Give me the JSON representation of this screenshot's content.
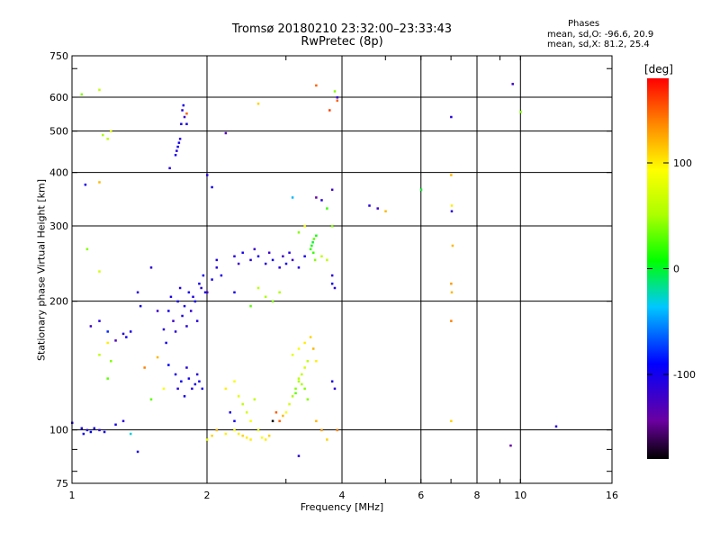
{
  "chart_data": {
    "type": "scatter",
    "title": "Tromsø 20180210 23:32:00–23:33:43",
    "subtitle": "RwPretec (8p)",
    "xlabel": "Frequency [MHz]",
    "ylabel": "Stationary phase Virtual Height [km]",
    "x_scale": "log",
    "y_scale": "log",
    "xlim": [
      1,
      16
    ],
    "ylim": [
      75,
      750
    ],
    "x_ticks": [
      1,
      2,
      4,
      6,
      8,
      10,
      16
    ],
    "y_ticks": [
      75,
      100,
      200,
      300,
      400,
      500,
      600,
      750
    ],
    "grid": true,
    "stats": {
      "title": "Phases",
      "o_line": "mean, sd,O: -96.6, 20.9",
      "x_line": "mean, sd,X: 81.2, 25.4"
    },
    "colorbar": {
      "title": "[deg]",
      "range": [
        -180,
        180
      ],
      "ticks": [
        100,
        0,
        -100
      ]
    },
    "points": [
      [
        1.0,
        104,
        -110
      ],
      [
        1.05,
        101,
        -100
      ],
      [
        1.06,
        98,
        -95
      ],
      [
        1.08,
        100,
        -105
      ],
      [
        1.1,
        99,
        -90
      ],
      [
        1.12,
        101,
        -100
      ],
      [
        1.15,
        100,
        -110
      ],
      [
        1.18,
        99,
        -100
      ],
      [
        1.25,
        103,
        -100
      ],
      [
        1.3,
        105,
        -110
      ],
      [
        1.35,
        98,
        -30
      ],
      [
        1.4,
        89,
        -105
      ],
      [
        1.1,
        175,
        -120
      ],
      [
        1.15,
        180,
        -110
      ],
      [
        1.2,
        170,
        -80
      ],
      [
        1.25,
        162,
        -130
      ],
      [
        1.3,
        168,
        -110
      ],
      [
        1.32,
        165,
        -100
      ],
      [
        1.35,
        170,
        -100
      ],
      [
        1.4,
        210,
        -110
      ],
      [
        1.42,
        195,
        -100
      ],
      [
        1.5,
        240,
        -110
      ],
      [
        1.55,
        190,
        -120
      ],
      [
        1.6,
        172,
        -110
      ],
      [
        1.62,
        160,
        -100
      ],
      [
        1.64,
        190,
        -100
      ],
      [
        1.66,
        205,
        -105
      ],
      [
        1.68,
        180,
        -120
      ],
      [
        1.7,
        170,
        -110
      ],
      [
        1.72,
        200,
        -100
      ],
      [
        1.74,
        215,
        -110
      ],
      [
        1.76,
        185,
        -105
      ],
      [
        1.78,
        195,
        -100
      ],
      [
        1.8,
        175,
        -110
      ],
      [
        1.82,
        210,
        -100
      ],
      [
        1.84,
        190,
        -115
      ],
      [
        1.86,
        205,
        -105
      ],
      [
        1.88,
        200,
        -100
      ],
      [
        1.9,
        180,
        -110
      ],
      [
        1.92,
        220,
        -100
      ],
      [
        1.94,
        215,
        -110
      ],
      [
        1.96,
        230,
        -100
      ],
      [
        1.98,
        210,
        -105
      ],
      [
        1.7,
        135,
        -100
      ],
      [
        1.72,
        125,
        -110
      ],
      [
        1.75,
        130,
        -95
      ],
      [
        1.78,
        120,
        -100
      ],
      [
        1.8,
        140,
        -110
      ],
      [
        1.82,
        132,
        -100
      ],
      [
        1.85,
        125,
        -105
      ],
      [
        1.88,
        128,
        -100
      ],
      [
        1.9,
        135,
        -110
      ],
      [
        1.92,
        130,
        -100
      ],
      [
        1.95,
        125,
        -100
      ],
      [
        1.6,
        125,
        90
      ],
      [
        1.5,
        118,
        30
      ],
      [
        1.45,
        140,
        140
      ],
      [
        1.55,
        148,
        120
      ],
      [
        1.64,
        142,
        -90
      ],
      [
        1.2,
        132,
        30
      ],
      [
        1.22,
        145,
        40
      ],
      [
        1.15,
        150,
        60
      ],
      [
        1.2,
        160,
        100
      ],
      [
        1.7,
        440,
        -100
      ],
      [
        1.71,
        450,
        -110
      ],
      [
        1.72,
        460,
        -95
      ],
      [
        1.73,
        470,
        -100
      ],
      [
        1.74,
        480,
        -110
      ],
      [
        1.75,
        520,
        -100
      ],
      [
        1.76,
        560,
        -110
      ],
      [
        1.77,
        575,
        -100
      ],
      [
        1.78,
        540,
        -120
      ],
      [
        1.8,
        520,
        -100
      ],
      [
        1.65,
        410,
        -110
      ],
      [
        1.8,
        550,
        150
      ],
      [
        1.05,
        610,
        40
      ],
      [
        1.15,
        625,
        60
      ],
      [
        1.17,
        490,
        50
      ],
      [
        1.2,
        480,
        60
      ],
      [
        1.22,
        500,
        80
      ],
      [
        1.15,
        380,
        120
      ],
      [
        1.07,
        375,
        -100
      ],
      [
        1.08,
        265,
        40
      ],
      [
        1.15,
        235,
        70
      ],
      [
        2.0,
        395,
        -110
      ],
      [
        2.05,
        370,
        -100
      ],
      [
        2.2,
        495,
        -130
      ],
      [
        2.0,
        210,
        -120
      ],
      [
        2.05,
        225,
        -100
      ],
      [
        2.1,
        240,
        -110
      ],
      [
        2.15,
        230,
        -100
      ],
      [
        2.1,
        250,
        -105
      ],
      [
        2.3,
        255,
        -110
      ],
      [
        2.35,
        245,
        -120
      ],
      [
        2.4,
        260,
        -100
      ],
      [
        2.5,
        250,
        -110
      ],
      [
        2.55,
        265,
        -120
      ],
      [
        2.6,
        255,
        -100
      ],
      [
        2.7,
        245,
        -110
      ],
      [
        2.75,
        260,
        -120
      ],
      [
        2.8,
        250,
        -100
      ],
      [
        2.9,
        240,
        -110
      ],
      [
        2.95,
        255,
        -120
      ],
      [
        3.0,
        245,
        -100
      ],
      [
        3.05,
        260,
        -110
      ],
      [
        3.1,
        250,
        -120
      ],
      [
        3.2,
        240,
        -110
      ],
      [
        3.3,
        255,
        -100
      ],
      [
        3.4,
        265,
        20
      ],
      [
        3.42,
        270,
        10
      ],
      [
        3.44,
        275,
        0
      ],
      [
        3.46,
        280,
        30
      ],
      [
        3.45,
        260,
        20
      ],
      [
        3.48,
        250,
        40
      ],
      [
        3.5,
        285,
        10
      ],
      [
        3.6,
        255,
        60
      ],
      [
        3.7,
        250,
        60
      ],
      [
        3.8,
        230,
        -110
      ],
      [
        3.8,
        220,
        -100
      ],
      [
        3.85,
        215,
        -110
      ],
      [
        3.2,
        290,
        40
      ],
      [
        3.3,
        300,
        90
      ],
      [
        2.6,
        215,
        60
      ],
      [
        2.7,
        205,
        50
      ],
      [
        2.8,
        200,
        40
      ],
      [
        2.9,
        210,
        50
      ],
      [
        2.5,
        195,
        30
      ],
      [
        2.3,
        210,
        -100
      ],
      [
        2.2,
        125,
        100
      ],
      [
        2.3,
        130,
        90
      ],
      [
        2.35,
        120,
        80
      ],
      [
        2.4,
        115,
        60
      ],
      [
        2.45,
        110,
        70
      ],
      [
        2.5,
        105,
        90
      ],
      [
        2.55,
        118,
        60
      ],
      [
        2.6,
        100,
        80
      ],
      [
        2.65,
        96,
        90
      ],
      [
        2.7,
        95,
        100
      ],
      [
        2.75,
        97,
        110
      ],
      [
        2.5,
        95,
        100
      ],
      [
        2.45,
        96,
        100
      ],
      [
        2.4,
        97,
        110
      ],
      [
        2.35,
        98,
        100
      ],
      [
        2.3,
        100,
        90
      ],
      [
        2.2,
        98,
        100
      ],
      [
        2.1,
        100,
        120
      ],
      [
        2.05,
        97,
        110
      ],
      [
        2.0,
        95,
        80
      ],
      [
        2.3,
        105,
        -100
      ],
      [
        2.25,
        110,
        -105
      ],
      [
        2.9,
        105,
        150
      ],
      [
        2.95,
        108,
        120
      ],
      [
        3.0,
        110,
        90
      ],
      [
        3.05,
        115,
        70
      ],
      [
        3.1,
        120,
        50
      ],
      [
        3.15,
        125,
        40
      ],
      [
        3.2,
        130,
        50
      ],
      [
        3.25,
        135,
        60
      ],
      [
        3.3,
        140,
        70
      ],
      [
        3.35,
        145,
        60
      ],
      [
        3.1,
        150,
        80
      ],
      [
        3.2,
        155,
        90
      ],
      [
        3.3,
        160,
        100
      ],
      [
        3.4,
        165,
        110
      ],
      [
        3.45,
        155,
        120
      ],
      [
        3.5,
        145,
        100
      ],
      [
        3.3,
        125,
        40
      ],
      [
        3.25,
        128,
        50
      ],
      [
        3.2,
        132,
        60
      ],
      [
        3.15,
        122,
        30
      ],
      [
        3.35,
        118,
        40
      ],
      [
        3.5,
        105,
        120
      ],
      [
        3.6,
        100,
        130
      ],
      [
        3.7,
        95,
        110
      ],
      [
        3.8,
        130,
        -100
      ],
      [
        3.85,
        125,
        -110
      ],
      [
        3.9,
        100,
        140
      ],
      [
        3.2,
        87,
        -110
      ],
      [
        2.8,
        105,
        -180
      ],
      [
        2.85,
        110,
        150
      ],
      [
        3.5,
        350,
        -140
      ],
      [
        3.6,
        345,
        -110
      ],
      [
        3.7,
        330,
        20
      ],
      [
        3.8,
        300,
        40
      ],
      [
        3.9,
        600,
        -110
      ],
      [
        3.85,
        620,
        40
      ],
      [
        3.5,
        640,
        150
      ],
      [
        3.75,
        560,
        160
      ],
      [
        3.8,
        365,
        -120
      ],
      [
        3.1,
        350,
        -40
      ],
      [
        4.6,
        335,
        -110
      ],
      [
        4.8,
        330,
        -120
      ],
      [
        5.0,
        325,
        120
      ],
      [
        6.0,
        365,
        0
      ],
      [
        7.0,
        540,
        -110
      ],
      [
        7.0,
        395,
        120
      ],
      [
        7.02,
        335,
        100
      ],
      [
        7.02,
        325,
        -110
      ],
      [
        7.05,
        270,
        120
      ],
      [
        7.0,
        220,
        130
      ],
      [
        7.02,
        210,
        120
      ],
      [
        7.0,
        180,
        140
      ],
      [
        7.0,
        105,
        110
      ],
      [
        9.6,
        645,
        -120
      ],
      [
        10.0,
        555,
        40
      ],
      [
        9.5,
        92,
        -140
      ],
      [
        12.0,
        102,
        -110
      ],
      [
        2.6,
        580,
        110
      ],
      [
        3.9,
        590,
        150
      ]
    ]
  }
}
